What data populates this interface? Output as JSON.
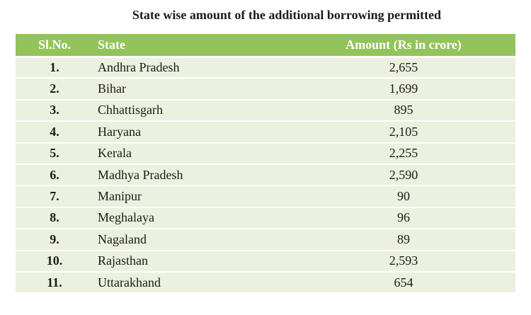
{
  "title": "State wise amount of the additional borrowing permitted",
  "headers": {
    "sl": "Sl.No.",
    "state": "State",
    "amount": "Amount (Rs in crore)"
  },
  "rows": [
    {
      "sl": "1.",
      "state": "Andhra Pradesh",
      "amount": "2,655"
    },
    {
      "sl": "2.",
      "state": "Bihar",
      "amount": "1,699"
    },
    {
      "sl": "3.",
      "state": "Chhattisgarh",
      "amount": "895"
    },
    {
      "sl": "4.",
      "state": "Haryana",
      "amount": "2,105"
    },
    {
      "sl": "5.",
      "state": "Kerala",
      "amount": "2,255"
    },
    {
      "sl": "6.",
      "state": "Madhya Pradesh",
      "amount": "2,590"
    },
    {
      "sl": "7.",
      "state": "Manipur",
      "amount": "90"
    },
    {
      "sl": "8.",
      "state": "Meghalaya",
      "amount": "96"
    },
    {
      "sl": "9.",
      "state": "Nagaland",
      "amount": "89"
    },
    {
      "sl": "10.",
      "state": "Rajasthan",
      "amount": "2,593"
    },
    {
      "sl": "11.",
      "state": "Uttarakhand",
      "amount": "654"
    }
  ],
  "colors": {
    "header_bg": "#92c45a",
    "row_bg": "#ebf1de",
    "header_text": "#ffffff"
  }
}
